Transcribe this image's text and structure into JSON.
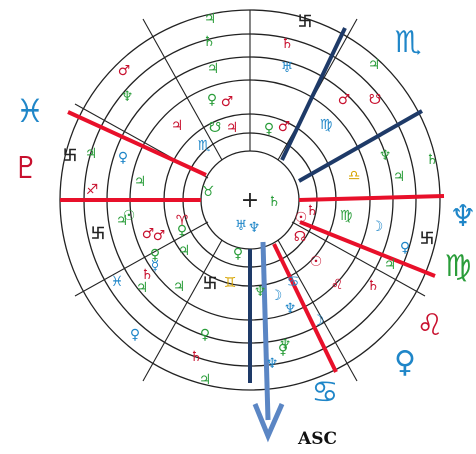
{
  "chart": {
    "center_mark": "+",
    "asc_label": "ASC",
    "outer_signs": [
      {
        "name": "scorpio",
        "glyph": "♏",
        "color": "#1f86c8"
      },
      {
        "name": "pisces",
        "glyph": "♓",
        "color": "#1f86c8"
      },
      {
        "name": "pluto",
        "glyph": "♇",
        "color": "#c8102e"
      },
      {
        "name": "neptune",
        "glyph": "♆",
        "color": "#1f86c8"
      },
      {
        "name": "virgo",
        "glyph": "♍",
        "color": "#2a9d3a"
      },
      {
        "name": "leo",
        "glyph": "♌",
        "color": "#c8102e"
      },
      {
        "name": "venus",
        "glyph": "♀",
        "color": "#1f86c8"
      },
      {
        "name": "cancer",
        "glyph": "♋",
        "color": "#1f86c8"
      }
    ],
    "ring_symbols": [
      {
        "g": "♃",
        "c": "#2a9d3a"
      },
      {
        "g": "卐",
        "c": "#222"
      },
      {
        "g": "♄",
        "c": "#2a9d3a"
      },
      {
        "g": "♃",
        "c": "#2a9d3a"
      },
      {
        "g": "♄",
        "c": "#c8102e"
      },
      {
        "g": "♅",
        "c": "#1f86c8"
      },
      {
        "g": "♂",
        "c": "#c8102e"
      },
      {
        "g": "♆",
        "c": "#2a9d3a"
      },
      {
        "g": "♀",
        "c": "#2a9d3a"
      },
      {
        "g": "♂",
        "c": "#c8102e"
      },
      {
        "g": "♍",
        "c": "#1f86c8"
      },
      {
        "g": "♃",
        "c": "#2a9d3a"
      },
      {
        "g": "☋",
        "c": "#c8102e"
      },
      {
        "g": "♃",
        "c": "#c8102e"
      },
      {
        "g": "☋",
        "c": "#2a9d3a"
      },
      {
        "g": "♀",
        "c": "#2a9d3a"
      },
      {
        "g": "♂",
        "c": "#c8102e"
      },
      {
        "g": "♆",
        "c": "#2a9d3a"
      },
      {
        "g": "♄",
        "c": "#2a9d3a"
      },
      {
        "g": "♎",
        "c": "#d7a400"
      },
      {
        "g": "♃",
        "c": "#2a9d3a"
      },
      {
        "g": "卐",
        "c": "#222"
      },
      {
        "g": "♀",
        "c": "#1f86c8"
      },
      {
        "g": "♃",
        "c": "#2a9d3a"
      },
      {
        "g": "♍",
        "c": "#2a9d3a"
      },
      {
        "g": "☽",
        "c": "#1f86c8"
      },
      {
        "g": "♄",
        "c": "#c8102e"
      },
      {
        "g": "☊",
        "c": "#c8102e"
      },
      {
        "g": "卐",
        "c": "#222"
      },
      {
        "g": "♀",
        "c": "#1f86c8"
      },
      {
        "g": "☉",
        "c": "#c8102e"
      },
      {
        "g": "♌",
        "c": "#c8102e"
      },
      {
        "g": "♄",
        "c": "#c8102e"
      },
      {
        "g": "♃",
        "c": "#2a9d3a"
      },
      {
        "g": "☉",
        "c": "#c8102e"
      },
      {
        "g": "♆",
        "c": "#1f86c8"
      },
      {
        "g": "♋",
        "c": "#1f86c8"
      },
      {
        "g": "♆",
        "c": "#1f86c8"
      },
      {
        "g": "☽",
        "c": "#1f86c8"
      },
      {
        "g": "♅",
        "c": "#1f86c8"
      },
      {
        "g": "♆",
        "c": "#2a9d3a"
      },
      {
        "g": "♀",
        "c": "#2a9d3a"
      },
      {
        "g": "卐",
        "c": "#222"
      },
      {
        "g": "♃",
        "c": "#2a9d3a"
      },
      {
        "g": "♊",
        "c": "#d7a400"
      },
      {
        "g": "♀",
        "c": "#2a9d3a"
      },
      {
        "g": "♃",
        "c": "#2a9d3a"
      },
      {
        "g": "♀",
        "c": "#2a9d3a"
      },
      {
        "g": "♃",
        "c": "#2a9d3a"
      },
      {
        "g": "♉",
        "c": "#2a9d3a"
      },
      {
        "g": "♐",
        "c": "#c8102e"
      },
      {
        "g": "☉",
        "c": "#2a9d3a"
      },
      {
        "g": "♂",
        "c": "#c8102e"
      },
      {
        "g": "♈",
        "c": "#c8102e"
      },
      {
        "g": "♃",
        "c": "#2a9d3a"
      },
      {
        "g": "♂",
        "c": "#c8102e"
      },
      {
        "g": "♀",
        "c": "#2a9d3a"
      },
      {
        "g": "♓",
        "c": "#1f86c8"
      },
      {
        "g": "♀",
        "c": "#1f86c8"
      },
      {
        "g": "♄",
        "c": "#c8102e"
      },
      {
        "g": "卐",
        "c": "#222"
      },
      {
        "g": "♃",
        "c": "#2a9d3a"
      },
      {
        "g": "♄",
        "c": "#c8102e"
      },
      {
        "g": "♆",
        "c": "#1f86c8"
      },
      {
        "g": "♃",
        "c": "#2a9d3a"
      },
      {
        "g": "♆",
        "c": "#2a9d3a"
      },
      {
        "g": "☽",
        "c": "#1f86c8"
      },
      {
        "g": "♀",
        "c": "#2a9d3a"
      },
      {
        "g": "♃",
        "c": "#c8102e"
      },
      {
        "g": "♂",
        "c": "#c8102e"
      },
      {
        "g": "♏",
        "c": "#1f86c8"
      },
      {
        "g": "♄",
        "c": "#2a9d3a"
      },
      {
        "g": "☿",
        "c": "#1f86c8"
      }
    ]
  }
}
